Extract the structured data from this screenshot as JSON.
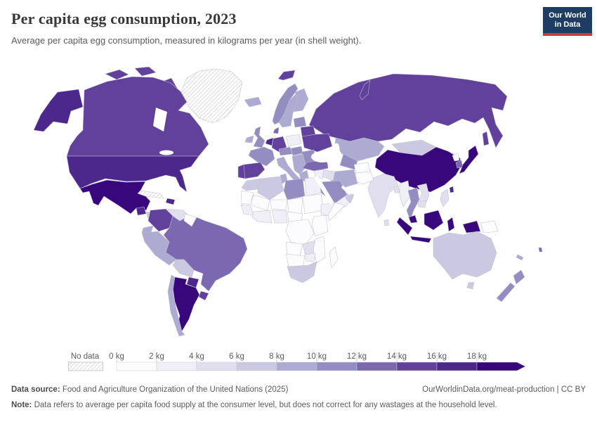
{
  "header": {
    "title": "Per capita egg consumption, 2023",
    "subtitle": "Average per capita egg consumption, measured in kilograms per year (in shell weight)."
  },
  "logo": {
    "line1": "Our World",
    "line2": "in Data",
    "bg_color": "#1d3d63",
    "accent_color": "#d13a34"
  },
  "chart_data": {
    "type": "choropleth",
    "title": "Per capita egg consumption, 2023",
    "unit": "kilograms per year (in shell weight)",
    "year": 2023,
    "legend": {
      "no_data_label": "No data",
      "tick_labels": [
        "0 kg",
        "2 kg",
        "4 kg",
        "6 kg",
        "8 kg",
        "10 kg",
        "12 kg",
        "14 kg",
        "16 kg",
        "18 kg"
      ],
      "bin_ranges": [
        "0-2 kg",
        "2-4 kg",
        "4-6 kg",
        "6-8 kg",
        "8-10 kg",
        "10-12 kg",
        "12-14 kg",
        "14-16 kg",
        "16-18 kg",
        "18+ kg"
      ],
      "bin_colors": [
        "#fcfbfd",
        "#f0eef6",
        "#e1dfed",
        "#cac9e1",
        "#aeabd3",
        "#938dc1",
        "#7b68b0",
        "#61419c",
        "#4c278c",
        "#38077c"
      ]
    },
    "regions": {
      "greenland": "nodata",
      "cuba": "nodata",
      "canada": 7,
      "canada_islands": 7,
      "alaska": 8,
      "usa": 8,
      "mexico": 9,
      "guatemala": 8,
      "honduras_nicaragua": 3,
      "costa_rica_panama": 5,
      "dominican_republic": 8,
      "colombia": 7,
      "venezuela": 2,
      "guyanas": 0,
      "ecuador": 4,
      "peru": 4,
      "brazil": 6,
      "bolivia": 3,
      "paraguay": 8,
      "uruguay": 7,
      "argentina": 9,
      "chile": 4,
      "iceland": 4,
      "ireland": 4,
      "uk": 5,
      "norway": 5,
      "svalbard": 7,
      "sweden": 4,
      "finland": 4,
      "denmark": 6,
      "baltics": 5,
      "belarus": 7,
      "poland": 1,
      "germany": 7,
      "benelux": 8,
      "france": 5,
      "spain": 7,
      "portugal": 7,
      "czech_austria": 5,
      "hungary": 5,
      "italy": 4,
      "balkans": 4,
      "greece": 4,
      "romania_bulgaria": 5,
      "ukraine": 7,
      "russia": 7,
      "sakhalin": 7,
      "novaya_zemlya": 7,
      "kazakhstan": 4,
      "central_asia": 5,
      "mongolia": 3,
      "china": 9,
      "north_korea": 0,
      "south_korea": 6,
      "japan": 9,
      "taiwan": 8,
      "india": 2,
      "pakistan": 0,
      "afghanistan": 0,
      "sri_lanka": 2,
      "bangladesh": 2,
      "iran": 4,
      "iraq": 2,
      "turkey": 6,
      "syria_jordan": 1,
      "saudi_arabia": 5,
      "yemen": 1,
      "oman_uae": 3,
      "myanmar": 1,
      "thailand": 5,
      "laos_vietnam": 2,
      "cambodia": 2,
      "malaysia": 9,
      "indonesia": 9,
      "philippines": 2,
      "papua_new_guinea": 0,
      "morocco": 3,
      "western_sahara_mauritania": 0,
      "algeria": 3,
      "tunisia": 4,
      "libya": 5,
      "egypt": 1,
      "mali": 0,
      "niger": 0,
      "chad": 0,
      "sudan": 0,
      "senegal_guinea": 1,
      "west_africa_coast": 1,
      "nigeria": 1,
      "cameroon_car": 0,
      "ethiopia": 1,
      "somalia": 0,
      "kenya_tanzania": 0,
      "drc": 0,
      "angola": 0,
      "zambia": 2,
      "mozambique": 0,
      "zimbabwe": 1,
      "namibia_botswana": 0,
      "south_africa": 3,
      "madagascar": 0,
      "australia": 3,
      "tasmania": 3,
      "new_zealand": 5,
      "fiji": 6,
      "new_caledonia": 4
    }
  },
  "footer": {
    "source_label": "Data source:",
    "source_text": " Food and Agriculture Organization of the United Nations (2025)",
    "link_text": "OurWorldinData.org/meat-production | CC BY",
    "note_label": "Note:",
    "note_text": " Data refers to average per capita food supply at the consumer level, but does not correct for any wastages at the household level."
  }
}
